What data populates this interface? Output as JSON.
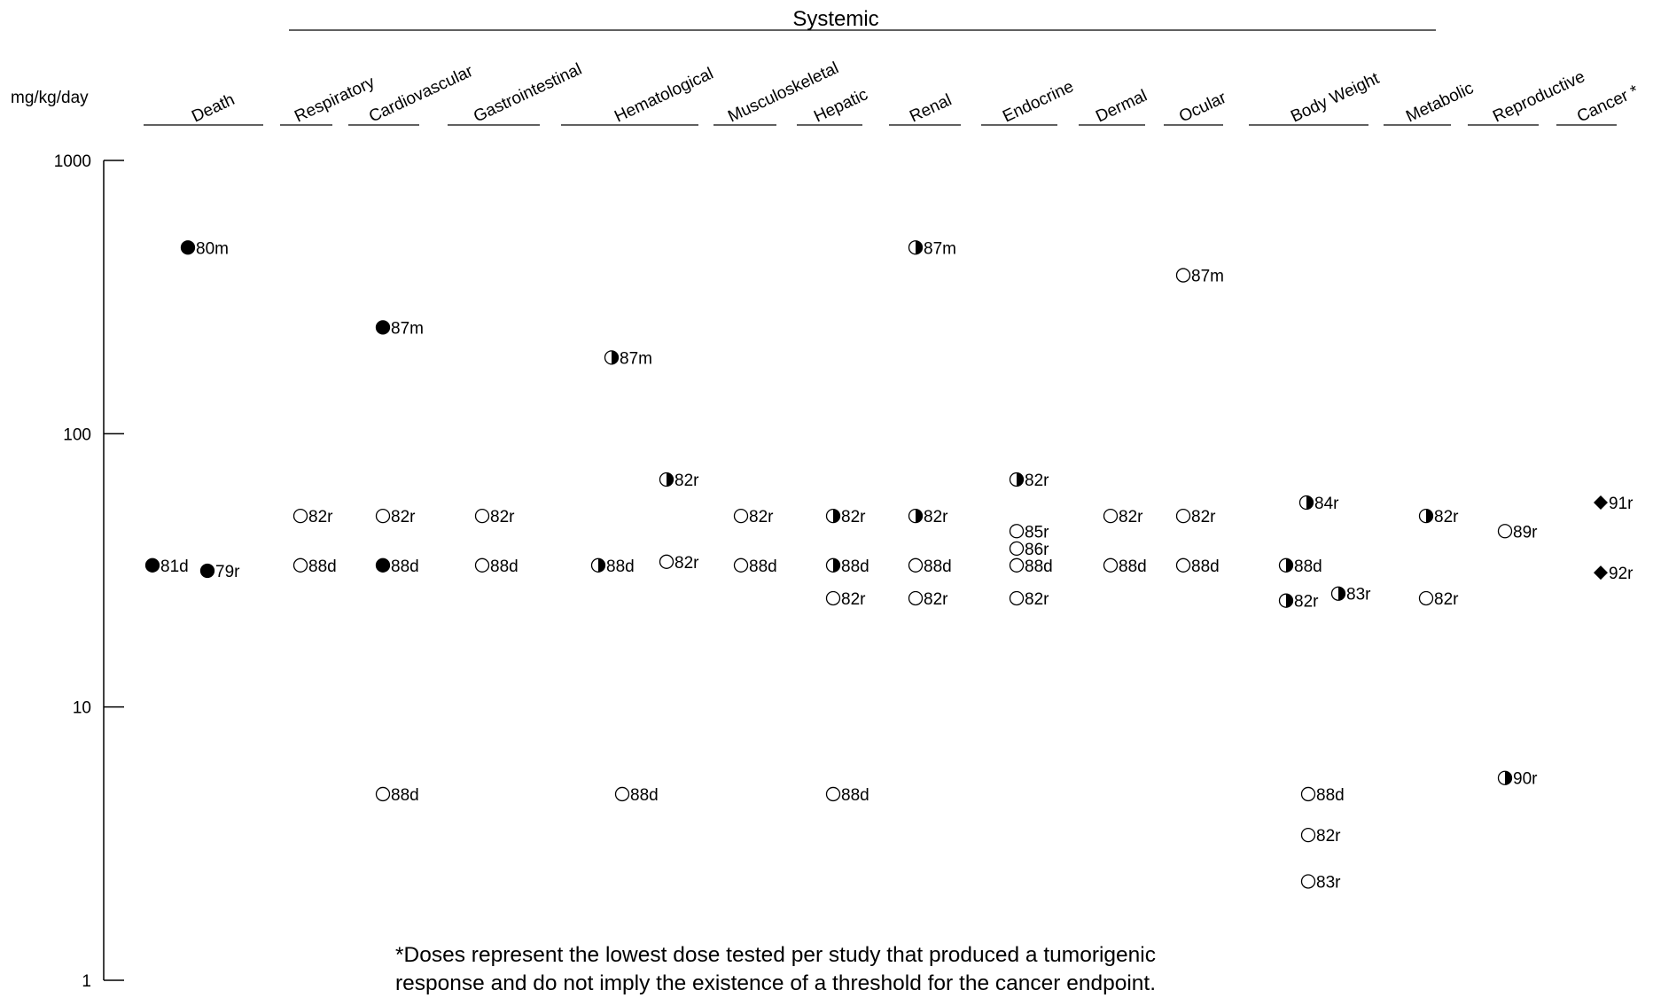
{
  "chart_data": {
    "type": "scatter",
    "title": "",
    "y_axis": {
      "label": "mg/kg/day",
      "scale": "log",
      "range": [
        1,
        1000
      ],
      "ticks": [
        "1000",
        "100",
        "10",
        "1"
      ]
    },
    "group_header": "Systemic",
    "categories": [
      "Death",
      "Respiratory",
      "Cardiovascular",
      "Gastrointestinal",
      "Hematological",
      "Musculoskeletal",
      "Hepatic",
      "Renal",
      "Endocrine",
      "Dermal",
      "Ocular",
      "Body Weight",
      "Metabolic",
      "Reproductive",
      "Cancer *"
    ],
    "points": [
      {
        "category": "Death",
        "value": 480,
        "label": "80m",
        "marker": "filled"
      },
      {
        "category": "Death",
        "value": 33,
        "label": "81d",
        "marker": "filled"
      },
      {
        "category": "Death",
        "value": 31.5,
        "label": "79r",
        "marker": "filled"
      },
      {
        "category": "Respiratory",
        "value": 50,
        "label": "82r",
        "marker": "open"
      },
      {
        "category": "Respiratory",
        "value": 33,
        "label": "88d",
        "marker": "open"
      },
      {
        "category": "Cardiovascular",
        "value": 245,
        "label": "87m",
        "marker": "filled"
      },
      {
        "category": "Cardiovascular",
        "value": 50,
        "label": "82r",
        "marker": "open"
      },
      {
        "category": "Cardiovascular",
        "value": 33,
        "label": "88d",
        "marker": "filled"
      },
      {
        "category": "Cardiovascular",
        "value": 4.8,
        "label": "88d",
        "marker": "open"
      },
      {
        "category": "Gastrointestinal",
        "value": 50,
        "label": "82r",
        "marker": "open"
      },
      {
        "category": "Gastrointestinal",
        "value": 33,
        "label": "88d",
        "marker": "open"
      },
      {
        "category": "Hematological",
        "value": 190,
        "label": "87m",
        "marker": "half"
      },
      {
        "category": "Hematological",
        "value": 33,
        "label": "88d",
        "marker": "half"
      },
      {
        "category": "Hematological",
        "value": 4.8,
        "label": "88d",
        "marker": "open"
      },
      {
        "category": "Hematological",
        "value": 68,
        "label": "82r",
        "marker": "half"
      },
      {
        "category": "Hematological",
        "value": 34,
        "label": "82r",
        "marker": "open"
      },
      {
        "category": "Musculoskeletal",
        "value": 50,
        "label": "82r",
        "marker": "open"
      },
      {
        "category": "Musculoskeletal",
        "value": 33,
        "label": "88d",
        "marker": "open"
      },
      {
        "category": "Hepatic",
        "value": 50,
        "label": "82r",
        "marker": "half"
      },
      {
        "category": "Hepatic",
        "value": 33,
        "label": "88d",
        "marker": "half"
      },
      {
        "category": "Hepatic",
        "value": 25,
        "label": "82r",
        "marker": "open"
      },
      {
        "category": "Hepatic",
        "value": 4.8,
        "label": "88d",
        "marker": "open"
      },
      {
        "category": "Renal",
        "value": 480,
        "label": "87m",
        "marker": "half"
      },
      {
        "category": "Renal",
        "value": 50,
        "label": "82r",
        "marker": "half"
      },
      {
        "category": "Renal",
        "value": 33,
        "label": "88d",
        "marker": "open"
      },
      {
        "category": "Renal",
        "value": 25,
        "label": "82r",
        "marker": "open"
      },
      {
        "category": "Endocrine",
        "value": 68,
        "label": "82r",
        "marker": "half"
      },
      {
        "category": "Endocrine",
        "value": 44,
        "label": "85r",
        "marker": "open"
      },
      {
        "category": "Endocrine",
        "value": 38,
        "label": "86r",
        "marker": "open"
      },
      {
        "category": "Endocrine",
        "value": 33,
        "label": "88d",
        "marker": "open"
      },
      {
        "category": "Endocrine",
        "value": 25,
        "label": "82r",
        "marker": "open"
      },
      {
        "category": "Dermal",
        "value": 50,
        "label": "82r",
        "marker": "open"
      },
      {
        "category": "Dermal",
        "value": 33,
        "label": "88d",
        "marker": "open"
      },
      {
        "category": "Ocular",
        "value": 380,
        "label": "87m",
        "marker": "open"
      },
      {
        "category": "Ocular",
        "value": 50,
        "label": "82r",
        "marker": "open"
      },
      {
        "category": "Ocular",
        "value": 33,
        "label": "88d",
        "marker": "open"
      },
      {
        "category": "Body Weight",
        "value": 56,
        "label": "84r",
        "marker": "half"
      },
      {
        "category": "Body Weight",
        "value": 33,
        "label": "88d",
        "marker": "half"
      },
      {
        "category": "Body Weight",
        "value": 24.5,
        "label": "82r",
        "marker": "half"
      },
      {
        "category": "Body Weight",
        "value": 26,
        "label": "83r",
        "marker": "half"
      },
      {
        "category": "Body Weight",
        "value": 4.8,
        "label": "88d",
        "marker": "open"
      },
      {
        "category": "Body Weight",
        "value": 3.4,
        "label": "82r",
        "marker": "open"
      },
      {
        "category": "Body Weight",
        "value": 2.3,
        "label": "83r",
        "marker": "open"
      },
      {
        "category": "Metabolic",
        "value": 50,
        "label": "82r",
        "marker": "half"
      },
      {
        "category": "Metabolic",
        "value": 25,
        "label": "82r",
        "marker": "open"
      },
      {
        "category": "Reproductive",
        "value": 44,
        "label": "89r",
        "marker": "open"
      },
      {
        "category": "Reproductive",
        "value": 5.5,
        "label": "90r",
        "marker": "half"
      },
      {
        "category": "Cancer *",
        "value": 56,
        "label": "91r",
        "marker": "diamond"
      },
      {
        "category": "Cancer *",
        "value": 31,
        "label": "92r",
        "marker": "diamond"
      }
    ]
  },
  "footnote": {
    "line1": "*Doses represent the lowest dose tested per study that produced a tumorigenic",
    "line2": "response and do not imply the existence of a threshold for the cancer endpoint."
  }
}
